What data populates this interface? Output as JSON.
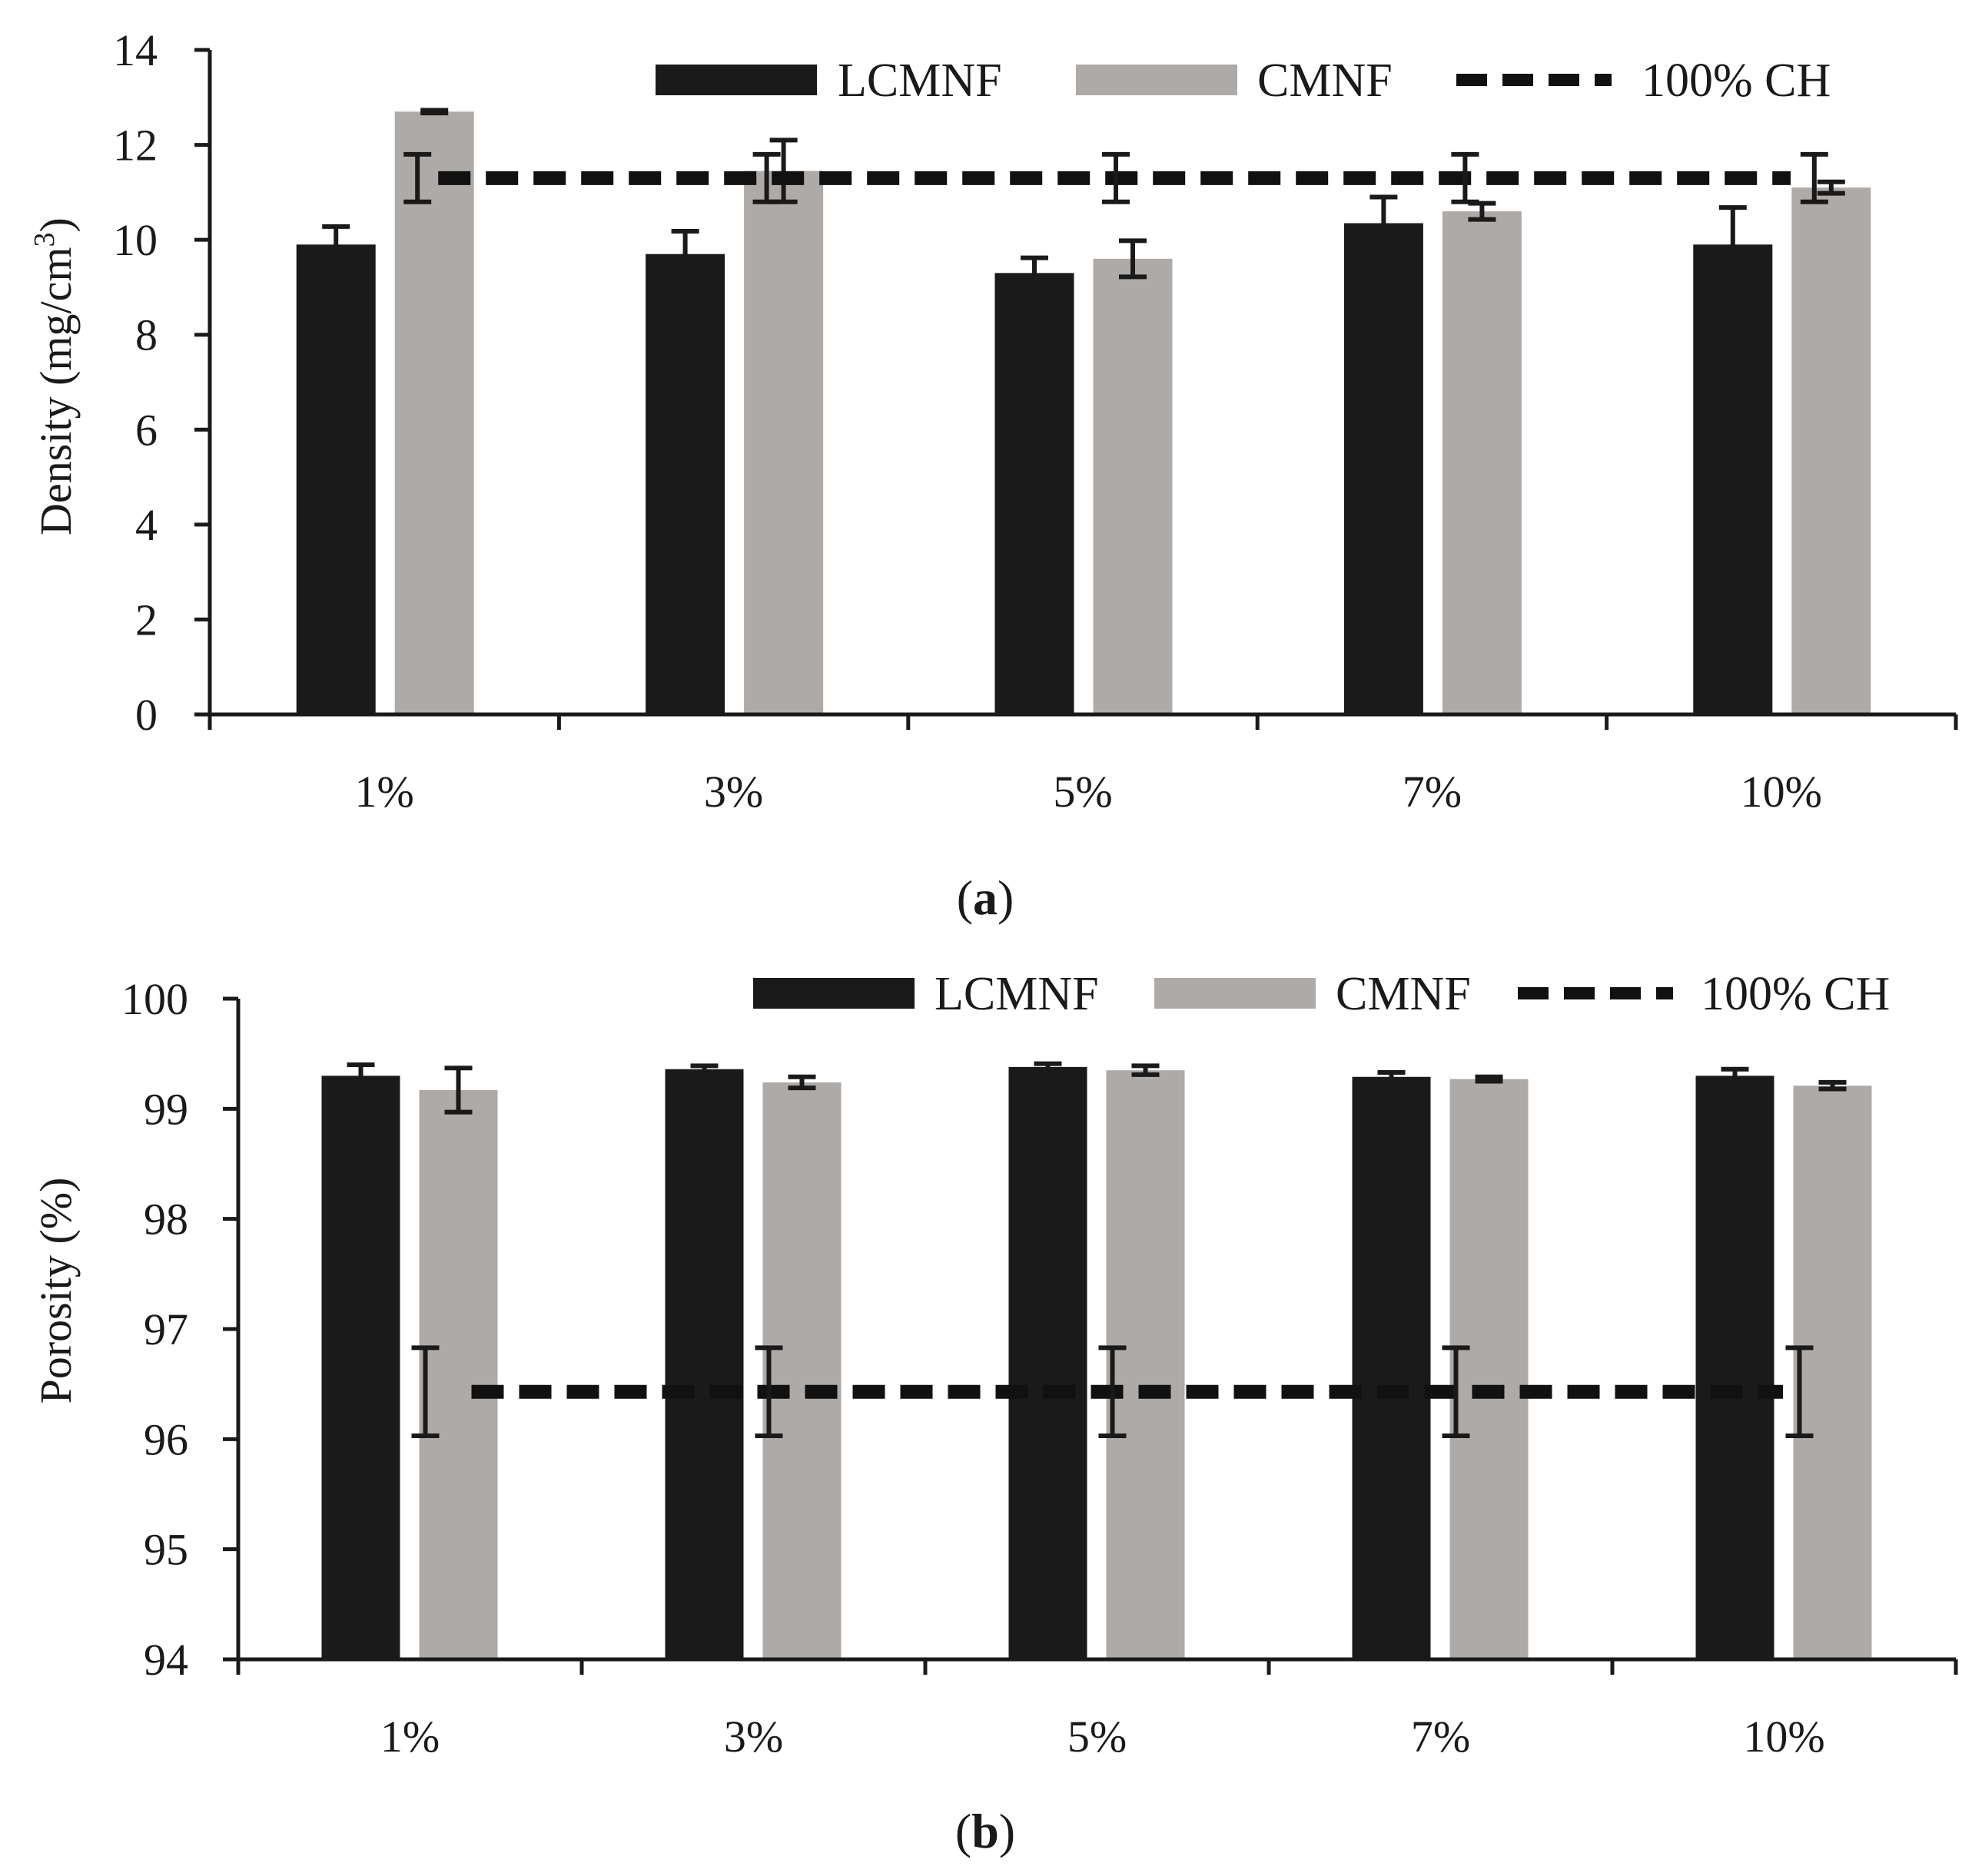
{
  "colors": {
    "lcmnf": "#1a1a1a",
    "cmnf": "#aeaaa8",
    "reference": "#111111",
    "axis": "#1a1a1a"
  },
  "chart_data": [
    {
      "type": "bar",
      "panel_label": "(a)",
      "panel_letter": "a",
      "ylabel_main": "Density (mg/cm",
      "ylabel_sup": "3",
      "ylabel_end": ")",
      "xlabel": "",
      "ylim": [
        0,
        14
      ],
      "yticks": [
        0,
        2,
        4,
        6,
        8,
        10,
        12,
        14
      ],
      "categories": [
        "1%",
        "3%",
        "5%",
        "7%",
        "10%"
      ],
      "legend_position": "top-right",
      "series": [
        {
          "name": "LCMNF",
          "values": [
            9.9,
            9.7,
            9.3,
            10.35,
            9.9
          ],
          "errors": [
            0.38,
            0.48,
            0.32,
            0.55,
            0.78
          ]
        },
        {
          "name": "CMNF",
          "values": [
            12.7,
            11.45,
            9.6,
            10.6,
            11.1
          ],
          "errors": [
            0.03,
            0.65,
            0.38,
            0.17,
            0.12
          ]
        }
      ],
      "reference": {
        "name": "100% CH",
        "value": 11.3,
        "error": 0.5
      }
    },
    {
      "type": "bar",
      "panel_label": "(b)",
      "panel_letter": "b",
      "ylabel_main": "Porosity (%)",
      "ylabel_sup": "",
      "ylabel_end": "",
      "xlabel": "",
      "ylim": [
        94,
        100
      ],
      "yticks": [
        94,
        95,
        96,
        97,
        98,
        99,
        100
      ],
      "categories": [
        "1%",
        "3%",
        "5%",
        "7%",
        "10%"
      ],
      "legend_position": "top-right",
      "series": [
        {
          "name": "LCMNF",
          "values": [
            99.3,
            99.36,
            99.38,
            99.29,
            99.3
          ],
          "errors": [
            0.1,
            0.03,
            0.03,
            0.04,
            0.06
          ]
        },
        {
          "name": "CMNF",
          "values": [
            99.17,
            99.24,
            99.35,
            99.27,
            99.21
          ],
          "errors": [
            0.2,
            0.05,
            0.04,
            0.02,
            0.03
          ]
        }
      ],
      "reference": {
        "name": "100% CH",
        "value": 96.43,
        "error": 0.4
      }
    }
  ]
}
